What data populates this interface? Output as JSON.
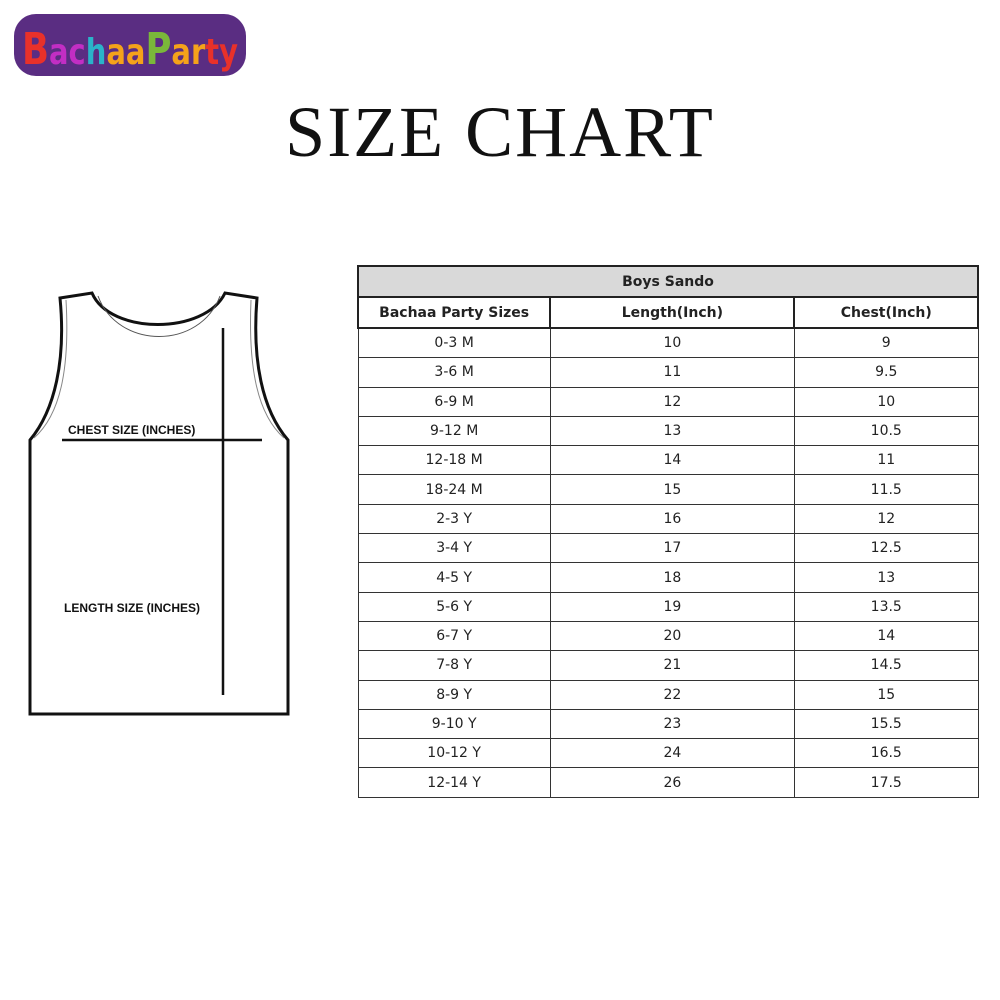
{
  "logo": {
    "text": "BachaaParty",
    "colors": [
      "#e8312a",
      "#c22ec4",
      "#2bb3c9",
      "#f4a21a",
      "#7ab83a",
      "#d6214a",
      "#5a2d82"
    ]
  },
  "title": "SIZE CHART",
  "diagram": {
    "chest_label": "CHEST SIZE (INCHES)",
    "length_label": "LENGTH SIZE (INCHES)"
  },
  "table": {
    "caption": "Boys Sando",
    "headers": [
      "Bachaa Party Sizes",
      "Length(Inch)",
      "Chest(Inch)"
    ],
    "rows": [
      [
        "0-3 M",
        "10",
        "9"
      ],
      [
        "3-6 M",
        "11",
        "9.5"
      ],
      [
        "6-9 M",
        "12",
        "10"
      ],
      [
        "9-12 M",
        "13",
        "10.5"
      ],
      [
        "12-18 M",
        "14",
        "11"
      ],
      [
        "18-24 M",
        "15",
        "11.5"
      ],
      [
        "2-3 Y",
        "16",
        "12"
      ],
      [
        "3-4 Y",
        "17",
        "12.5"
      ],
      [
        "4-5 Y",
        "18",
        "13"
      ],
      [
        "5-6 Y",
        "19",
        "13.5"
      ],
      [
        "6-7 Y",
        "20",
        "14"
      ],
      [
        "7-8 Y",
        "21",
        "14.5"
      ],
      [
        "8-9 Y",
        "22",
        "15"
      ],
      [
        "9-10 Y",
        "23",
        "15.5"
      ],
      [
        "10-12 Y",
        "24",
        "16.5"
      ],
      [
        "12-14 Y",
        "26",
        "17.5"
      ]
    ]
  }
}
